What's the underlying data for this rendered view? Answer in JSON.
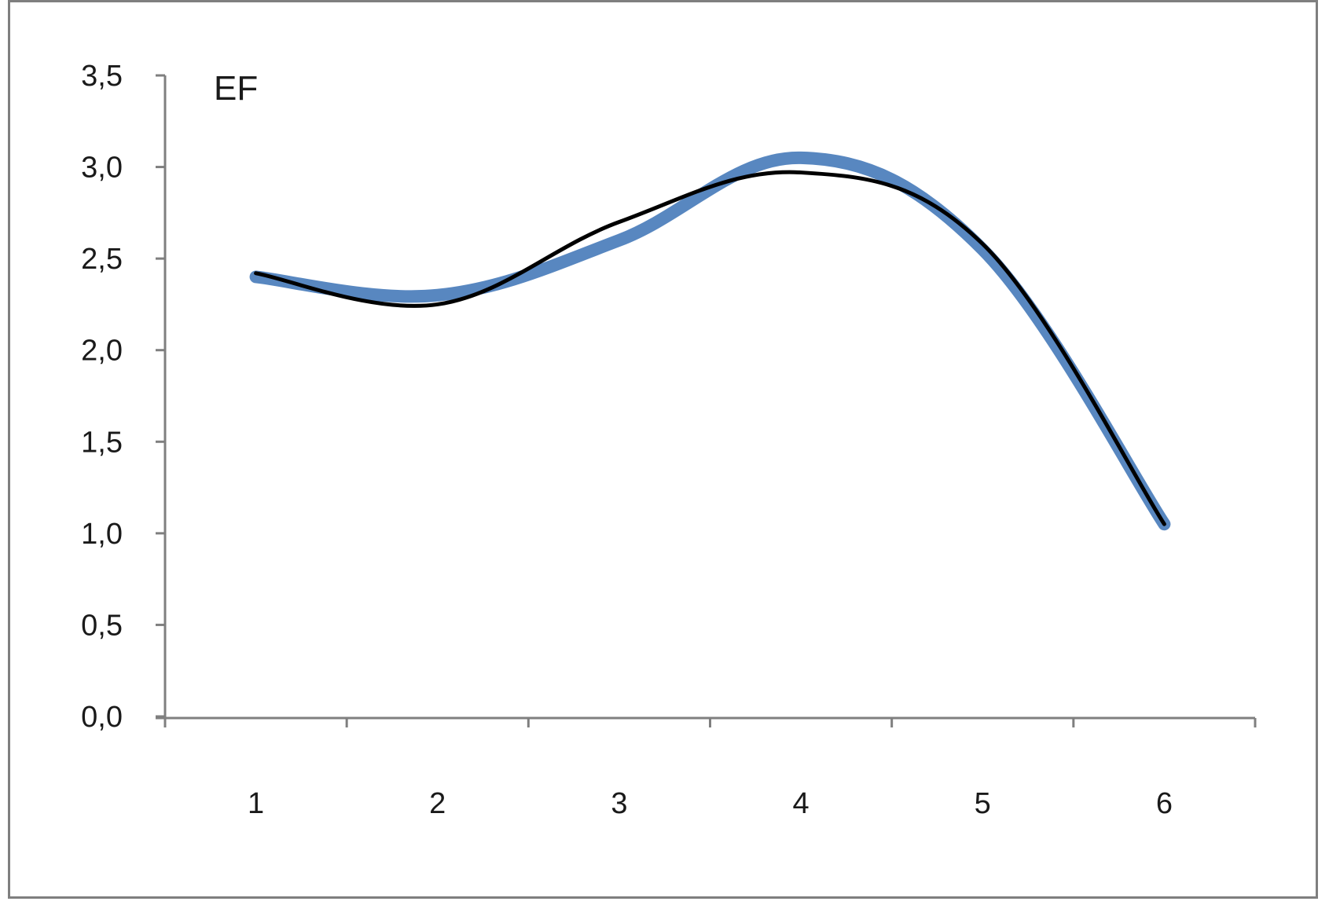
{
  "chart_data": {
    "type": "line",
    "title": "EF",
    "categories": [
      "1",
      "2",
      "3",
      "4",
      "5",
      "6"
    ],
    "y_tick_labels": [
      "0,0",
      "0,5",
      "1,0",
      "1,5",
      "2,0",
      "2,5",
      "3,0",
      "3,5"
    ],
    "y_ticks": [
      0,
      0.5,
      1.0,
      1.5,
      2.0,
      2.5,
      3.0,
      3.5
    ],
    "ylim": [
      0,
      3.5
    ],
    "grid": false,
    "legend": "none",
    "series": [
      {
        "values": [
          2.4,
          2.3,
          2.6,
          3.05,
          2.55,
          1.05
        ],
        "color": "#4f81bd",
        "style": "thick"
      },
      {
        "values": [
          2.42,
          2.25,
          2.7,
          2.97,
          2.58,
          1.05
        ],
        "color": "#000000",
        "style": "thin"
      }
    ]
  },
  "colors": {
    "axis": "#7f7f7f",
    "frame": "#7f7f7f"
  }
}
